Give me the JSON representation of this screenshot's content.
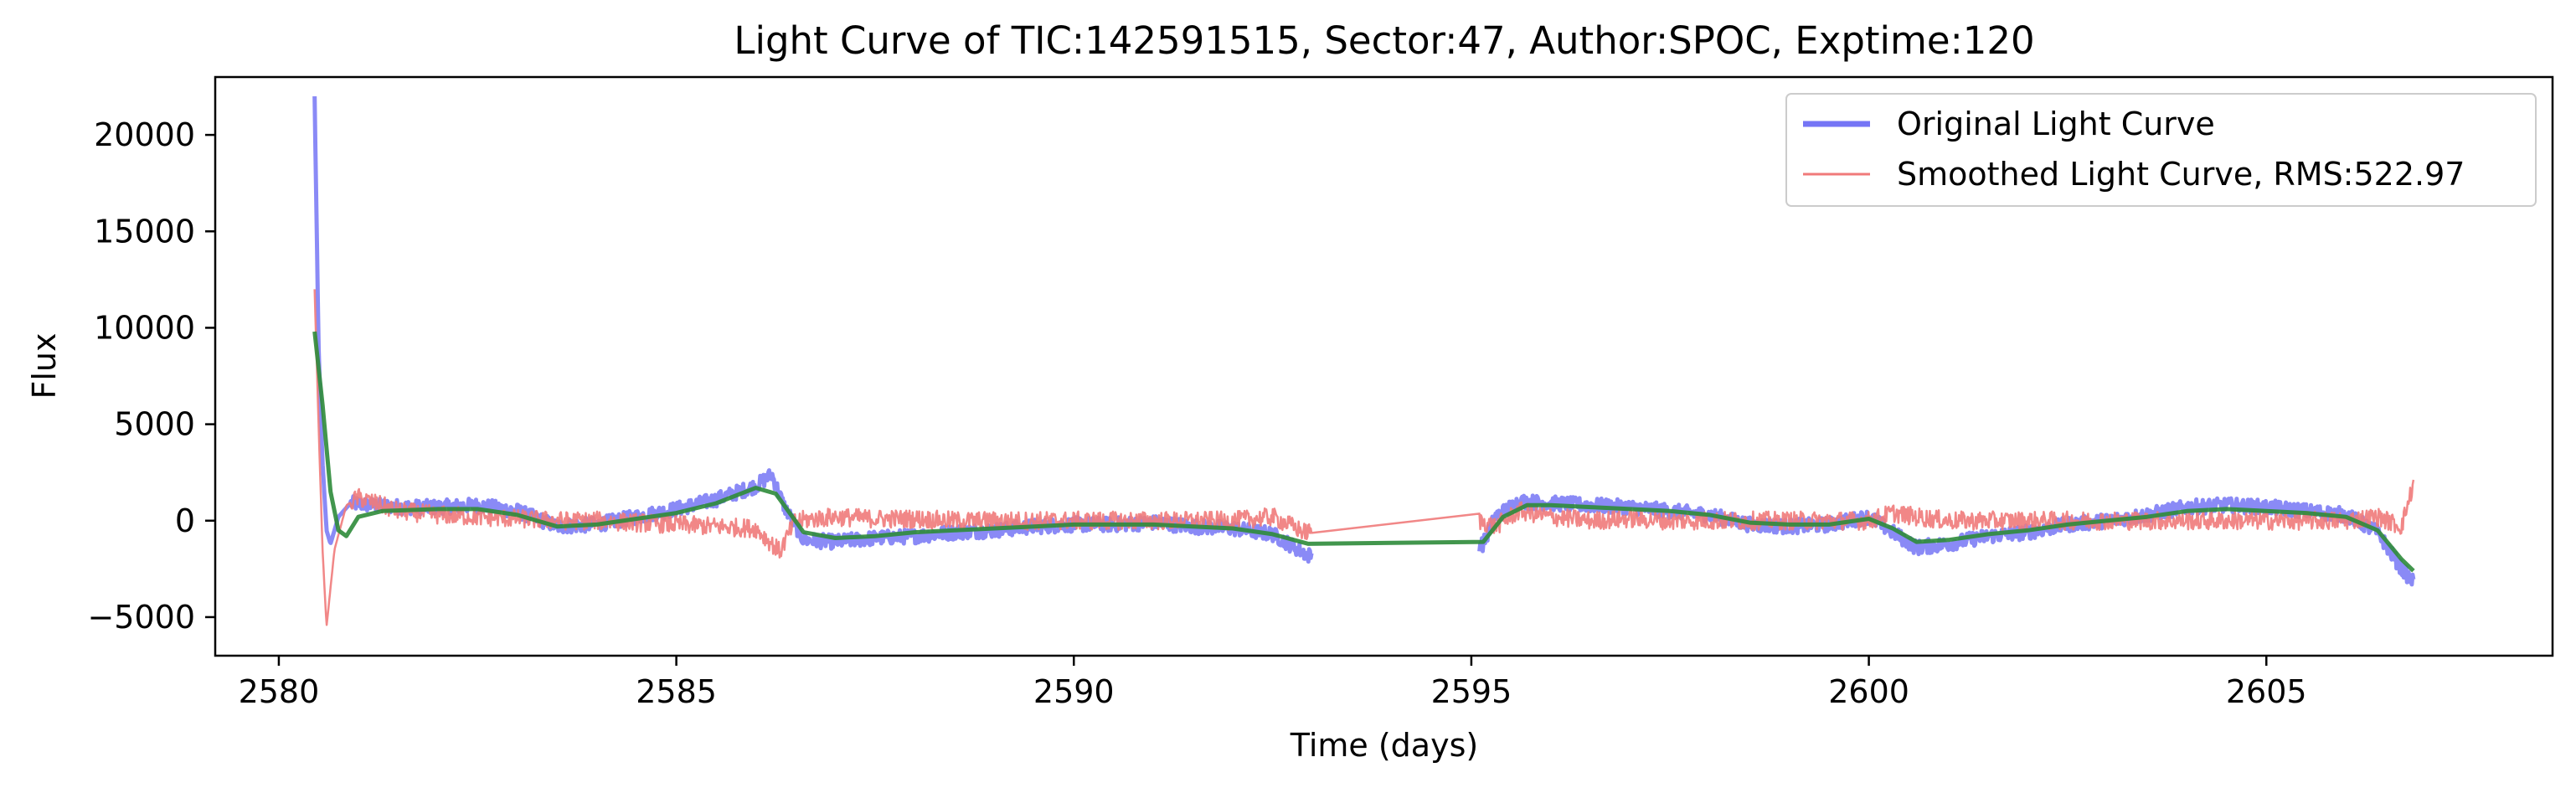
{
  "chart_data": {
    "type": "line",
    "title": "Light Curve of TIC:142591515, Sector:47, Author:SPOC, Exptime:120",
    "xlabel": "Time (days)",
    "ylabel": "Flux",
    "xlim": [
      2579.2,
      2608.6
    ],
    "ylim": [
      -7000,
      23000
    ],
    "xticks": [
      2580,
      2585,
      2590,
      2595,
      2600,
      2605
    ],
    "xtick_labels": [
      "2580",
      "2585",
      "2590",
      "2595",
      "2600",
      "2605"
    ],
    "yticks": [
      -5000,
      0,
      5000,
      10000,
      15000,
      20000
    ],
    "ytick_labels": [
      "−5000",
      "0",
      "5000",
      "10000",
      "15000",
      "20000"
    ],
    "grid": false,
    "legend_position": "top-right",
    "legend": [
      {
        "label": "Original Light Curve",
        "color": "#7575f5"
      },
      {
        "label": "Smoothed Light Curve, RMS:522.97",
        "color": "#f07a7a"
      }
    ],
    "series": [
      {
        "name": "Original Light Curve",
        "color": "#7575f5",
        "noise": 380,
        "values": [
          [
            2580.45,
            22000
          ],
          [
            2580.5,
            9000
          ],
          [
            2580.55,
            3000
          ],
          [
            2580.6,
            -500
          ],
          [
            2580.65,
            -1200
          ],
          [
            2580.75,
            200
          ],
          [
            2580.9,
            900
          ],
          [
            2581.2,
            800
          ],
          [
            2581.6,
            700
          ],
          [
            2582.0,
            700
          ],
          [
            2582.5,
            800
          ],
          [
            2583.0,
            500
          ],
          [
            2583.5,
            -300
          ],
          [
            2584.0,
            -200
          ],
          [
            2584.5,
            200
          ],
          [
            2585.0,
            600
          ],
          [
            2585.5,
            1100
          ],
          [
            2586.0,
            1800
          ],
          [
            2586.2,
            2400
          ],
          [
            2586.35,
            800
          ],
          [
            2586.6,
            -1000
          ],
          [
            2587.0,
            -1100
          ],
          [
            2587.5,
            -900
          ],
          [
            2588.0,
            -800
          ],
          [
            2588.5,
            -600
          ],
          [
            2589.0,
            -500
          ],
          [
            2589.5,
            -300
          ],
          [
            2590.0,
            -200
          ],
          [
            2590.5,
            -200
          ],
          [
            2591.0,
            -100
          ],
          [
            2591.5,
            -300
          ],
          [
            2592.0,
            -400
          ],
          [
            2592.5,
            -700
          ],
          [
            2592.95,
            -1800
          ],
          [
            2595.15,
            -1200
          ],
          [
            2595.3,
            200
          ],
          [
            2595.6,
            1000
          ],
          [
            2596.0,
            900
          ],
          [
            2596.5,
            800
          ],
          [
            2597.0,
            700
          ],
          [
            2597.5,
            500
          ],
          [
            2598.0,
            300
          ],
          [
            2598.5,
            -200
          ],
          [
            2599.0,
            -300
          ],
          [
            2599.5,
            -200
          ],
          [
            2600.0,
            200
          ],
          [
            2600.3,
            -600
          ],
          [
            2600.6,
            -1400
          ],
          [
            2601.0,
            -1200
          ],
          [
            2601.5,
            -800
          ],
          [
            2602.0,
            -600
          ],
          [
            2602.5,
            -200
          ],
          [
            2603.0,
            0
          ],
          [
            2603.5,
            300
          ],
          [
            2604.0,
            700
          ],
          [
            2604.5,
            800
          ],
          [
            2605.0,
            700
          ],
          [
            2605.5,
            500
          ],
          [
            2606.0,
            300
          ],
          [
            2606.4,
            -600
          ],
          [
            2606.7,
            -2500
          ],
          [
            2606.85,
            -3200
          ]
        ]
      },
      {
        "name": "Smoothed Light Curve, RMS:522.97",
        "color": "#f07a7a",
        "noise": 480,
        "values": [
          [
            2580.45,
            12000
          ],
          [
            2580.5,
            5000
          ],
          [
            2580.55,
            -1500
          ],
          [
            2580.6,
            -5500
          ],
          [
            2580.7,
            -1500
          ],
          [
            2580.85,
            800
          ],
          [
            2581.0,
            1200
          ],
          [
            2581.5,
            500
          ],
          [
            2582.0,
            300
          ],
          [
            2582.5,
            200
          ],
          [
            2583.0,
            100
          ],
          [
            2583.5,
            0
          ],
          [
            2584.0,
            0
          ],
          [
            2584.5,
            -100
          ],
          [
            2585.0,
            -200
          ],
          [
            2585.5,
            -300
          ],
          [
            2586.0,
            -400
          ],
          [
            2586.3,
            -1600
          ],
          [
            2586.5,
            0
          ],
          [
            2587.0,
            200
          ],
          [
            2587.5,
            100
          ],
          [
            2588.0,
            100
          ],
          [
            2588.5,
            0
          ],
          [
            2589.0,
            0
          ],
          [
            2589.5,
            0
          ],
          [
            2590.0,
            0
          ],
          [
            2590.5,
            0
          ],
          [
            2591.0,
            0
          ],
          [
            2591.5,
            0
          ],
          [
            2592.0,
            0
          ],
          [
            2592.5,
            200
          ],
          [
            2592.9,
            -600
          ],
          [
            2595.1,
            0
          ],
          [
            2595.3,
            -300
          ],
          [
            2595.6,
            500
          ],
          [
            2596.0,
            200
          ],
          [
            2596.5,
            0
          ],
          [
            2597.0,
            100
          ],
          [
            2597.5,
            0
          ],
          [
            2598.0,
            0
          ],
          [
            2598.5,
            0
          ],
          [
            2599.0,
            0
          ],
          [
            2599.5,
            0
          ],
          [
            2600.0,
            0
          ],
          [
            2600.3,
            400
          ],
          [
            2600.6,
            200
          ],
          [
            2601.0,
            0
          ],
          [
            2601.5,
            0
          ],
          [
            2602.0,
            0
          ],
          [
            2602.5,
            0
          ],
          [
            2603.0,
            0
          ],
          [
            2603.5,
            0
          ],
          [
            2604.0,
            0
          ],
          [
            2604.5,
            0
          ],
          [
            2605.0,
            0
          ],
          [
            2605.5,
            0
          ],
          [
            2606.0,
            0
          ],
          [
            2606.4,
            200
          ],
          [
            2606.7,
            -300
          ],
          [
            2606.85,
            1900
          ]
        ]
      },
      {
        "name": "",
        "color": "#2e8b3a",
        "noise": 0,
        "values": [
          [
            2580.45,
            9800
          ],
          [
            2580.55,
            6000
          ],
          [
            2580.65,
            1500
          ],
          [
            2580.75,
            -500
          ],
          [
            2580.85,
            -800
          ],
          [
            2581.0,
            200
          ],
          [
            2581.3,
            500
          ],
          [
            2582.0,
            600
          ],
          [
            2582.5,
            600
          ],
          [
            2583.0,
            300
          ],
          [
            2583.5,
            -300
          ],
          [
            2584.0,
            -200
          ],
          [
            2584.5,
            100
          ],
          [
            2585.0,
            400
          ],
          [
            2585.5,
            900
          ],
          [
            2586.0,
            1700
          ],
          [
            2586.25,
            1400
          ],
          [
            2586.6,
            -600
          ],
          [
            2587.0,
            -900
          ],
          [
            2587.5,
            -800
          ],
          [
            2588.0,
            -600
          ],
          [
            2588.5,
            -500
          ],
          [
            2589.0,
            -400
          ],
          [
            2589.5,
            -300
          ],
          [
            2590.0,
            -200
          ],
          [
            2590.5,
            -200
          ],
          [
            2591.0,
            -200
          ],
          [
            2591.5,
            -300
          ],
          [
            2592.0,
            -400
          ],
          [
            2592.5,
            -700
          ],
          [
            2592.95,
            -1200
          ],
          [
            2595.15,
            -1100
          ],
          [
            2595.4,
            200
          ],
          [
            2595.7,
            800
          ],
          [
            2596.0,
            800
          ],
          [
            2596.5,
            700
          ],
          [
            2597.0,
            600
          ],
          [
            2597.5,
            500
          ],
          [
            2598.0,
            300
          ],
          [
            2598.5,
            -100
          ],
          [
            2599.0,
            -200
          ],
          [
            2599.5,
            -200
          ],
          [
            2600.0,
            100
          ],
          [
            2600.3,
            -400
          ],
          [
            2600.6,
            -1100
          ],
          [
            2601.0,
            -1000
          ],
          [
            2601.5,
            -700
          ],
          [
            2602.0,
            -500
          ],
          [
            2602.5,
            -200
          ],
          [
            2603.0,
            0
          ],
          [
            2603.5,
            200
          ],
          [
            2604.0,
            500
          ],
          [
            2604.5,
            600
          ],
          [
            2605.0,
            500
          ],
          [
            2605.5,
            400
          ],
          [
            2606.0,
            200
          ],
          [
            2606.4,
            -500
          ],
          [
            2606.7,
            -2000
          ],
          [
            2606.85,
            -2600
          ]
        ]
      }
    ]
  }
}
